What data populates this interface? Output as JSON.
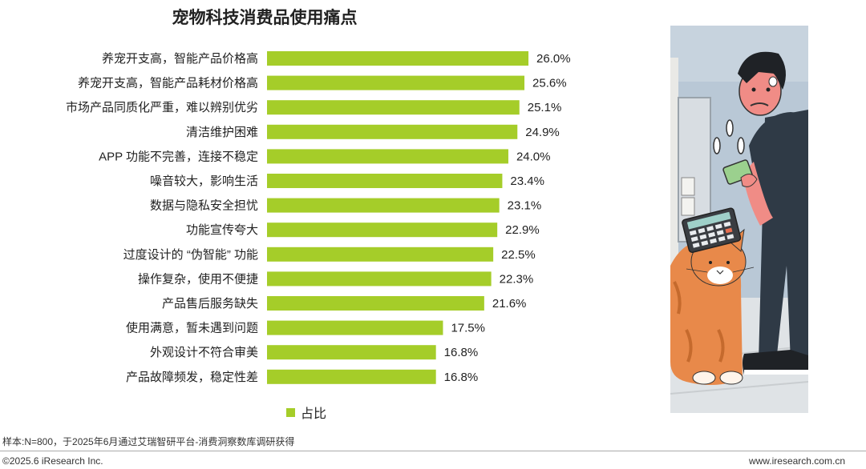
{
  "title": "宠物科技消费品使用痛点",
  "chart_data": {
    "type": "bar",
    "orientation": "horizontal",
    "categories": [
      "养宠开支高，智能产品价格高",
      "养宠开支高，智能产品耗材价格高",
      "市场产品同质化严重，难以辨别优劣",
      "清洁维护困难",
      "APP 功能不完善，连接不稳定",
      "噪音较大，影响生活",
      "数据与隐私安全担忧",
      "功能宣传夸大",
      "过度设计的 “伪智能” 功能",
      "操作复杂，使用不便捷",
      "产品售后服务缺失",
      "使用满意，暂未遇到问题",
      "外观设计不符合审美",
      "产品故障频发，稳定性差"
    ],
    "values": [
      26.0,
      25.6,
      25.1,
      24.9,
      24.0,
      23.4,
      23.1,
      22.9,
      22.5,
      22.3,
      21.6,
      17.5,
      16.8,
      16.8
    ],
    "value_labels": [
      "26.0%",
      "25.6%",
      "25.1%",
      "24.9%",
      "24.0%",
      "23.4%",
      "23.1%",
      "22.9%",
      "22.5%",
      "22.3%",
      "21.6%",
      "17.5%",
      "16.8%",
      "16.8%"
    ],
    "series_name": "占比",
    "unit": "%",
    "bar_color": "#a5cd29",
    "legend_position": "bottom",
    "grid": false
  },
  "footer": {
    "note": "样本:N=800，于2025年6月通过艾瑞智研平台-消费洞察数库调研获得",
    "copyright": "©2025.6 iResearch Inc.",
    "website": "www.iresearch.com.cn"
  }
}
